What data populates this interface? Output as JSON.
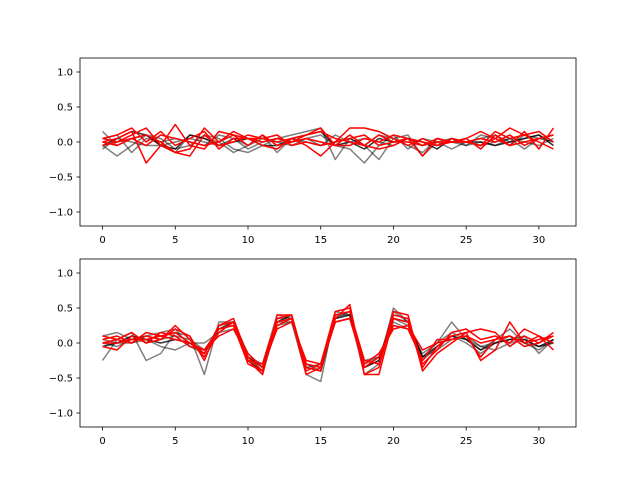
{
  "chart_data": [
    {
      "type": "line",
      "xlim": [
        -1.55,
        32.55
      ],
      "ylim": [
        -1.2,
        1.2
      ],
      "xticks": [
        0,
        5,
        10,
        15,
        20,
        25,
        30
      ],
      "yticks": [
        -1.0,
        -0.5,
        0.0,
        0.5,
        1.0
      ],
      "xtick_labels": [
        "0",
        "5",
        "10",
        "15",
        "20",
        "25",
        "30"
      ],
      "ytick_labels": [
        "−1.0",
        "−0.5",
        "0.0",
        "0.5",
        "1.0"
      ],
      "grid": false,
      "x": [
        0,
        1,
        2,
        3,
        4,
        5,
        6,
        7,
        8,
        9,
        10,
        11,
        12,
        13,
        14,
        15,
        16,
        17,
        18,
        19,
        20,
        21,
        22,
        23,
        24,
        25,
        26,
        27,
        28,
        29,
        30,
        31
      ],
      "series": [
        {
          "color": "#000000",
          "alpha": 0.5,
          "values": [
            0.15,
            -0.05,
            0.05,
            0.1,
            0.05,
            -0.1,
            -0.05,
            0.1,
            0.05,
            -0.1,
            -0.15,
            -0.05,
            0.05,
            0.1,
            0.15,
            0.2,
            -0.25,
            0.05,
            -0.05,
            0.1,
            0.05,
            -0.05,
            -0.15,
            0.05,
            0.0,
            -0.05,
            0.1,
            0.05,
            -0.05,
            0.1,
            0.05,
            0.0
          ]
        },
        {
          "color": "#000000",
          "alpha": 0.5,
          "values": [
            -0.05,
            -0.2,
            -0.05,
            0.1,
            -0.05,
            -0.15,
            0.1,
            0.05,
            0.0,
            -0.15,
            -0.05,
            0.05,
            0.0,
            -0.05,
            0.05,
            0.1,
            -0.05,
            -0.1,
            -0.3,
            -0.05,
            0.1,
            -0.1,
            0.05,
            0.0,
            -0.1,
            0.0,
            0.05,
            0.1,
            0.0,
            0.05,
            0.1,
            0.0
          ]
        },
        {
          "color": "#000000",
          "alpha": 0.5,
          "values": [
            0.05,
            0.1,
            -0.15,
            0.05,
            0.0,
            0.05,
            0.0,
            -0.05,
            0.1,
            0.05,
            -0.05,
            0.1,
            -0.15,
            0.05,
            0.0,
            -0.05,
            0.0,
            0.05,
            -0.05,
            -0.25,
            0.05,
            0.1,
            -0.2,
            0.0,
            0.05,
            -0.05,
            0.0,
            -0.05,
            0.05,
            -0.1,
            0.05,
            0.1
          ]
        },
        {
          "color": "#000000",
          "alpha": 0.5,
          "values": [
            -0.1,
            0.05,
            0.0,
            -0.05,
            -0.05,
            0.0,
            0.05,
            0.0,
            -0.05,
            0.05,
            -0.1,
            0.0,
            0.05,
            0.0,
            0.05,
            -0.05,
            0.1,
            0.0,
            0.05,
            0.0,
            -0.05,
            0.05,
            0.0,
            -0.05,
            0.05,
            0.0,
            -0.05,
            0.0,
            0.05,
            0.0,
            -0.05,
            0.05
          ]
        },
        {
          "color": "#000000",
          "alpha": 0.8,
          "values": [
            -0.05,
            0.05,
            0.15,
            0.1,
            -0.05,
            -0.1,
            0.1,
            0.05,
            -0.05,
            0.0,
            0.05,
            -0.05,
            -0.05,
            0.05,
            0.1,
            0.15,
            -0.05,
            0.0,
            -0.1,
            0.05,
            0.0,
            0.05,
            0.0,
            -0.1,
            0.05,
            0.0,
            0.0,
            -0.05,
            0.0,
            0.05,
            0.1,
            -0.05
          ]
        },
        {
          "color": "#ff0000",
          "alpha": 1,
          "values": [
            0.05,
            0.0,
            0.1,
            0.2,
            -0.05,
            -0.15,
            -0.1,
            0.2,
            0.0,
            0.15,
            0.05,
            -0.05,
            -0.1,
            0.05,
            -0.05,
            -0.2,
            0.0,
            0.2,
            0.2,
            0.15,
            0.05,
            -0.05,
            0.05,
            -0.05,
            0.05,
            0.0,
            -0.05,
            0.15,
            0.05,
            0.1,
            0.15,
            0.0
          ]
        },
        {
          "color": "#ff0000",
          "alpha": 1,
          "values": [
            0.0,
            0.05,
            0.15,
            -0.3,
            -0.05,
            0.25,
            -0.05,
            -0.1,
            0.15,
            0.1,
            -0.05,
            0.1,
            -0.05,
            0.0,
            0.05,
            0.0,
            -0.05,
            0.1,
            -0.05,
            -0.1,
            -0.05,
            0.05,
            -0.2,
            0.05,
            0.0,
            0.05,
            -0.1,
            0.1,
            -0.05,
            0.15,
            -0.1,
            0.2
          ]
        },
        {
          "color": "#ff0000",
          "alpha": 1,
          "values": [
            -0.05,
            0.0,
            0.05,
            0.1,
            0.0,
            -0.15,
            -0.2,
            0.1,
            -0.05,
            0.0,
            0.1,
            0.05,
            0.1,
            -0.05,
            0.0,
            -0.05,
            0.0,
            0.05,
            0.1,
            -0.05,
            0.0,
            0.05,
            -0.05,
            0.0,
            0.0,
            0.05,
            0.15,
            0.05,
            0.2,
            0.1,
            0.0,
            -0.1
          ]
        },
        {
          "color": "#ff0000",
          "alpha": 1,
          "values": [
            0.05,
            0.1,
            0.2,
            0.0,
            0.15,
            -0.05,
            0.05,
            0.15,
            -0.1,
            0.05,
            0.05,
            0.0,
            0.05,
            0.0,
            0.1,
            0.2,
            -0.05,
            -0.05,
            0.05,
            0.0,
            0.1,
            0.05,
            0.0,
            -0.05,
            0.0,
            0.0,
            0.05,
            0.0,
            0.1,
            -0.05,
            0.05,
            0.1
          ]
        },
        {
          "color": "#ff0000",
          "alpha": 1,
          "values": [
            0.0,
            -0.05,
            0.05,
            -0.05,
            0.1,
            0.05,
            0.0,
            -0.05,
            0.0,
            0.1,
            0.05,
            0.05,
            0.0,
            0.05,
            0.1,
            0.15,
            0.05,
            0.0,
            -0.05,
            0.1,
            0.0,
            0.0,
            -0.05,
            0.05,
            0.0,
            0.0,
            -0.05,
            0.05,
            -0.05,
            0.0,
            0.05,
            0.1
          ]
        }
      ]
    },
    {
      "type": "line",
      "xlim": [
        -1.55,
        32.55
      ],
      "ylim": [
        -1.2,
        1.2
      ],
      "xticks": [
        0,
        5,
        10,
        15,
        20,
        25,
        30
      ],
      "yticks": [
        -1.0,
        -0.5,
        0.0,
        0.5,
        1.0
      ],
      "xtick_labels": [
        "0",
        "5",
        "10",
        "15",
        "20",
        "25",
        "30"
      ],
      "ytick_labels": [
        "−1.0",
        "−0.5",
        "0.0",
        "0.5",
        "1.0"
      ],
      "grid": false,
      "x": [
        0,
        1,
        2,
        3,
        4,
        5,
        6,
        7,
        8,
        9,
        10,
        11,
        12,
        13,
        14,
        15,
        16,
        17,
        18,
        19,
        20,
        21,
        22,
        23,
        24,
        25,
        26,
        27,
        28,
        29,
        30,
        31
      ],
      "series": [
        {
          "color": "#000000",
          "alpha": 0.5,
          "values": [
            -0.25,
            0.05,
            0.15,
            -0.25,
            -0.15,
            0.15,
            0.1,
            -0.45,
            0.3,
            0.3,
            -0.2,
            -0.45,
            0.3,
            0.3,
            -0.45,
            -0.55,
            0.45,
            0.4,
            -0.45,
            -0.3,
            0.5,
            0.3,
            -0.2,
            0.0,
            0.3,
            0.05,
            -0.1,
            0.05,
            0.2,
            0.0,
            -0.1,
            0.05
          ]
        },
        {
          "color": "#000000",
          "alpha": 0.5,
          "values": [
            0.1,
            0.15,
            0.05,
            0.1,
            0.15,
            0.2,
            -0.05,
            -0.15,
            0.25,
            0.3,
            -0.15,
            -0.35,
            0.35,
            0.35,
            -0.3,
            -0.4,
            0.35,
            0.45,
            -0.25,
            -0.2,
            0.35,
            0.25,
            -0.25,
            -0.05,
            0.1,
            0.0,
            -0.15,
            0.0,
            0.05,
            0.1,
            -0.15,
            0.05
          ]
        },
        {
          "color": "#000000",
          "alpha": 0.5,
          "values": [
            0.0,
            -0.05,
            0.05,
            0.1,
            0.05,
            0.1,
            0.05,
            -0.1,
            0.2,
            0.25,
            -0.25,
            -0.4,
            0.25,
            0.3,
            -0.3,
            -0.35,
            0.3,
            0.35,
            -0.3,
            -0.2,
            0.3,
            0.2,
            -0.15,
            0.0,
            0.15,
            0.05,
            -0.05,
            0.0,
            0.1,
            0.0,
            -0.05,
            0.0
          ]
        },
        {
          "color": "#000000",
          "alpha": 0.5,
          "values": [
            0.05,
            0.0,
            0.0,
            0.05,
            -0.05,
            -0.1,
            0.0,
            0.0,
            0.15,
            0.2,
            -0.2,
            -0.3,
            0.4,
            0.35,
            -0.35,
            -0.3,
            0.4,
            0.4,
            -0.35,
            -0.25,
            0.45,
            0.3,
            -0.2,
            -0.1,
            0.05,
            0.1,
            -0.05,
            -0.1,
            0.0,
            0.05,
            -0.05,
            0.0
          ]
        },
        {
          "color": "#000000",
          "alpha": 0.8,
          "values": [
            -0.05,
            0.0,
            0.1,
            0.05,
            0.0,
            0.05,
            0.0,
            -0.15,
            0.2,
            0.3,
            -0.2,
            -0.35,
            0.3,
            0.4,
            -0.35,
            -0.4,
            0.35,
            0.4,
            -0.35,
            -0.25,
            0.35,
            0.3,
            -0.2,
            -0.05,
            0.1,
            0.05,
            -0.1,
            0.0,
            0.05,
            0.05,
            -0.05,
            0.05
          ]
        },
        {
          "color": "#ff0000",
          "alpha": 1,
          "values": [
            0.1,
            0.05,
            0.15,
            0.0,
            0.05,
            0.25,
            0.05,
            -0.2,
            0.15,
            0.3,
            -0.25,
            -0.45,
            0.4,
            0.4,
            -0.4,
            -0.3,
            0.45,
            0.5,
            -0.45,
            -0.35,
            0.4,
            0.35,
            -0.3,
            -0.1,
            0.15,
            0.2,
            0.05,
            0.1,
            0.0,
            0.2,
            0.1,
            0.0
          ]
        },
        {
          "color": "#ff0000",
          "alpha": 1,
          "values": [
            0.0,
            0.05,
            0.0,
            0.1,
            0.05,
            0.2,
            0.1,
            -0.25,
            0.25,
            0.35,
            -0.2,
            -0.4,
            0.25,
            0.35,
            -0.3,
            -0.35,
            0.35,
            0.55,
            -0.45,
            -0.45,
            0.35,
            0.3,
            -0.35,
            -0.05,
            0.1,
            0.15,
            -0.25,
            -0.1,
            0.3,
            0.0,
            0.1,
            -0.1
          ]
        },
        {
          "color": "#ff0000",
          "alpha": 1,
          "values": [
            -0.05,
            -0.1,
            0.1,
            0.0,
            0.15,
            0.1,
            -0.05,
            -0.1,
            0.2,
            0.25,
            -0.3,
            -0.4,
            0.3,
            0.35,
            -0.45,
            -0.35,
            0.3,
            0.35,
            -0.35,
            -0.2,
            0.25,
            0.2,
            -0.25,
            0.05,
            0.05,
            0.1,
            -0.2,
            0.05,
            0.1,
            -0.05,
            0.0,
            0.1
          ]
        },
        {
          "color": "#ff0000",
          "alpha": 1,
          "values": [
            0.0,
            0.0,
            0.05,
            0.05,
            0.1,
            0.15,
            0.0,
            -0.15,
            0.25,
            0.3,
            -0.25,
            -0.3,
            0.35,
            0.4,
            -0.35,
            -0.4,
            0.4,
            0.45,
            -0.25,
            -0.3,
            0.45,
            0.4,
            -0.4,
            -0.15,
            0.0,
            0.15,
            0.2,
            0.15,
            -0.05,
            0.1,
            0.0,
            0.15
          ]
        },
        {
          "color": "#ff0000",
          "alpha": 1,
          "values": [
            0.05,
            0.1,
            0.0,
            0.15,
            0.1,
            0.05,
            0.0,
            -0.1,
            0.1,
            0.2,
            -0.15,
            -0.35,
            0.2,
            0.3,
            -0.25,
            -0.3,
            0.3,
            0.35,
            -0.3,
            -0.15,
            0.2,
            0.25,
            -0.1,
            0.0,
            0.05,
            0.1,
            0.0,
            0.05,
            0.1,
            0.0,
            0.05,
            0.1
          ]
        }
      ]
    }
  ]
}
